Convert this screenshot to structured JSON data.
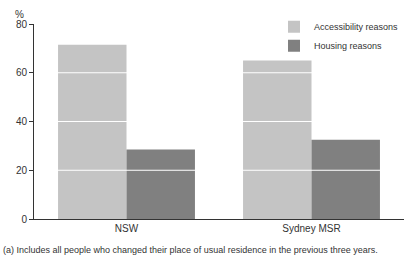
{
  "chart_data": {
    "type": "bar",
    "ylabel": "%",
    "categories": [
      "NSW",
      "Sydney MSR"
    ],
    "series": [
      {
        "name": "Accessibility reasons",
        "color": "#c4c4c4",
        "values": [
          71.5,
          65
        ]
      },
      {
        "name": "Housing reasons",
        "color": "#808080",
        "values": [
          28.5,
          32.5
        ]
      }
    ],
    "ylim": [
      0,
      80
    ],
    "yticks": [
      0,
      20,
      40,
      60,
      80
    ],
    "grid": true,
    "legend": "top-right",
    "annotation": "(a) Includes all people who changed their place of usual residence in the previous three years."
  }
}
